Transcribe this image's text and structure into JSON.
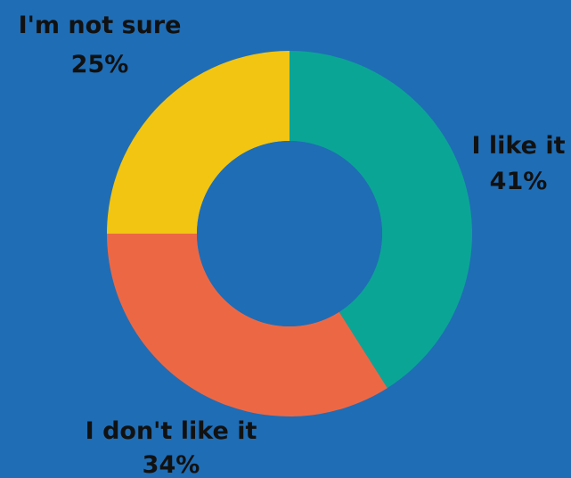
{
  "chart_data": {
    "type": "pie",
    "donut": true,
    "categories": [
      "I like it",
      "I don't like it",
      "I'm not sure"
    ],
    "values": [
      41,
      34,
      25
    ],
    "value_labels": [
      "41%",
      "34%",
      "25%"
    ],
    "colors": [
      "#0ba596",
      "#ec6845",
      "#f2c512"
    ],
    "background_color": "#1f6db5",
    "label_color": "#111111",
    "legend": "none"
  }
}
